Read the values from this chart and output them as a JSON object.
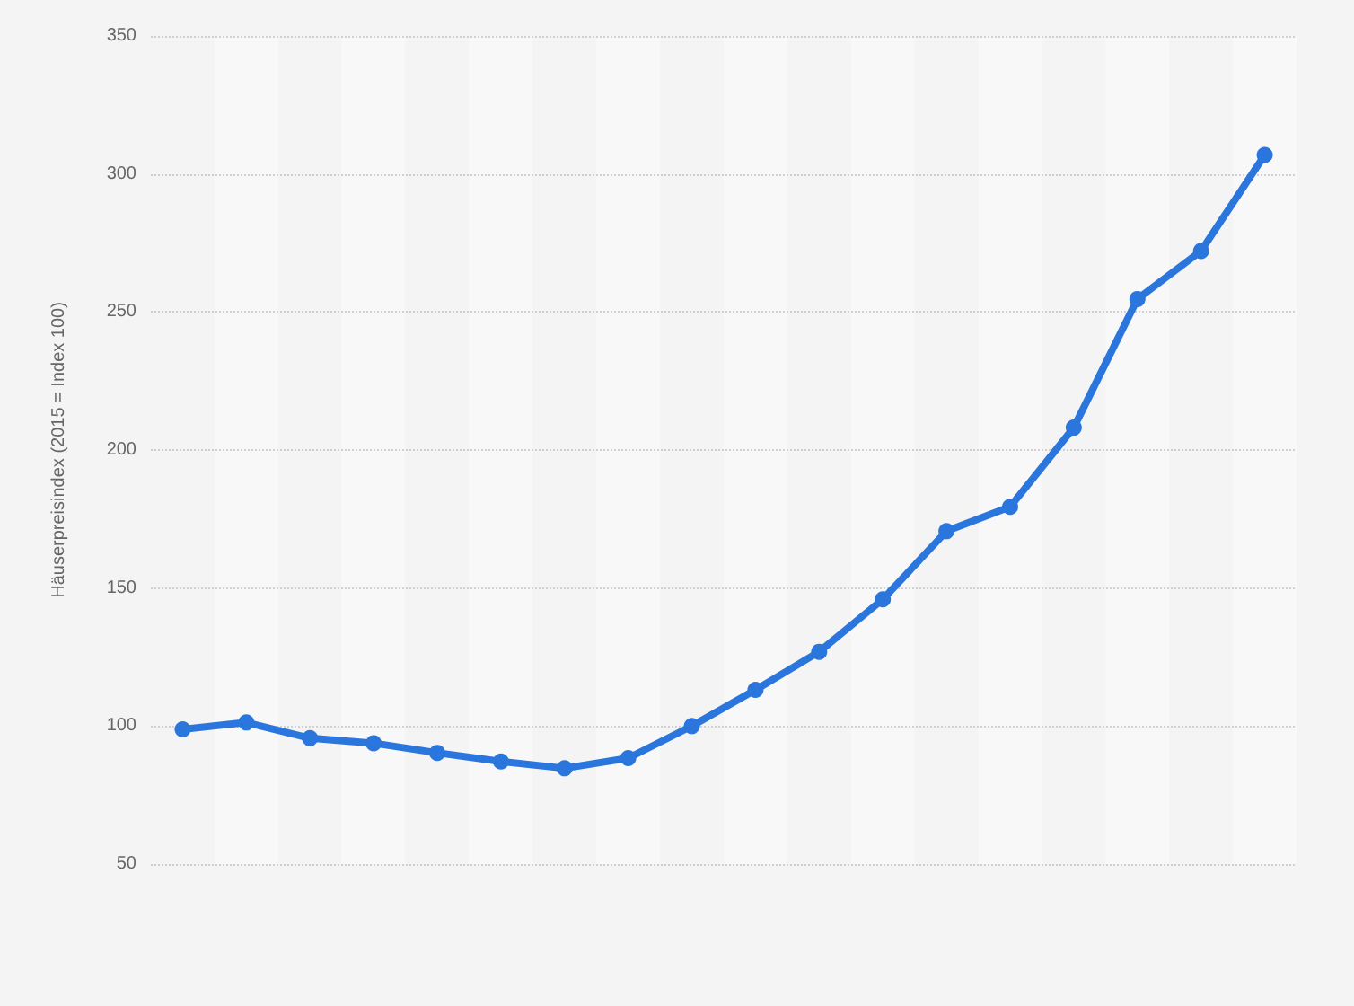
{
  "chart_data": {
    "type": "line",
    "ylabel": "Häuserpreisindex (2015 = Index 100)",
    "categories": [
      null,
      null,
      null,
      null,
      null,
      null,
      null,
      null,
      null,
      null,
      null,
      null,
      null,
      null,
      null,
      null,
      null,
      null
    ],
    "series": [
      {
        "color": "#2a76dd",
        "values": [
          98.8,
          101.3,
          95.6,
          93.8,
          90.3,
          87.2,
          84.7,
          88.4,
          100,
          113.1,
          126.9,
          145.9,
          170.6,
          179.4,
          208.1,
          254.7,
          272.1,
          306.9
        ]
      }
    ],
    "ylim": [
      50,
      350
    ],
    "yticks": [
      50,
      100,
      150,
      200,
      250,
      300,
      350
    ],
    "grid": "y",
    "marker": "circle",
    "line_style": "solid"
  }
}
